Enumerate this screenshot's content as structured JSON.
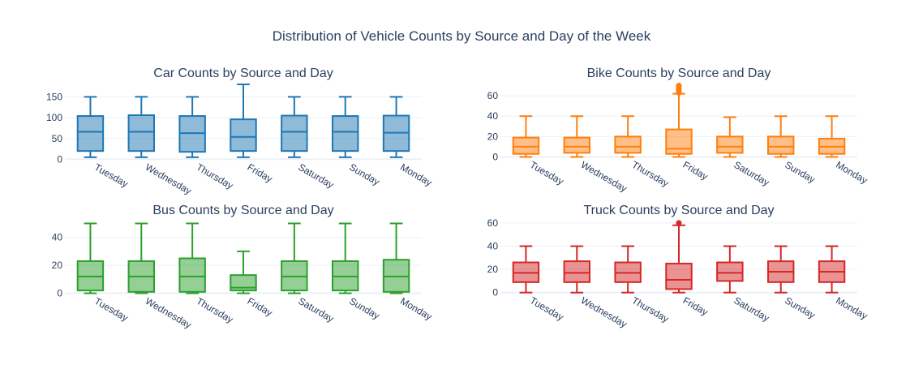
{
  "title": "Distribution of Vehicle Counts by Source and Day of the Week",
  "chart_data": [
    {
      "type": "box",
      "title": "Car Counts by Source and Day",
      "color": "#1f77b4",
      "fill": "rgba(31,119,180,0.5)",
      "ylim": [
        -5,
        182
      ],
      "yticks": [
        0,
        50,
        100,
        150
      ],
      "categories": [
        "Tuesday",
        "Wednesday",
        "Thursday",
        "Friday",
        "Saturday",
        "Sunday",
        "Monday"
      ],
      "boxes": [
        {
          "min": 5,
          "q1": 20,
          "median": 66,
          "q3": 104,
          "max": 150,
          "outliers": []
        },
        {
          "min": 5,
          "q1": 20,
          "median": 66,
          "q3": 106,
          "max": 150,
          "outliers": []
        },
        {
          "min": 5,
          "q1": 18,
          "median": 63,
          "q3": 104,
          "max": 150,
          "outliers": []
        },
        {
          "min": 5,
          "q1": 20,
          "median": 54,
          "q3": 96,
          "max": 180,
          "outliers": []
        },
        {
          "min": 5,
          "q1": 20,
          "median": 66,
          "q3": 105,
          "max": 150,
          "outliers": []
        },
        {
          "min": 5,
          "q1": 20,
          "median": 66,
          "q3": 104,
          "max": 150,
          "outliers": []
        },
        {
          "min": 5,
          "q1": 20,
          "median": 64,
          "q3": 105,
          "max": 150,
          "outliers": []
        }
      ]
    },
    {
      "type": "box",
      "title": "Bike Counts by Source and Day",
      "color": "#ff7f0e",
      "fill": "rgba(255,127,14,0.5)",
      "ylim": [
        -2,
        72
      ],
      "yticks": [
        0,
        20,
        40,
        60
      ],
      "categories": [
        "Tuesday",
        "Wednesday",
        "Thursday",
        "Friday",
        "Saturday",
        "Sunday",
        "Monday"
      ],
      "boxes": [
        {
          "min": 0,
          "q1": 3,
          "median": 10,
          "q3": 19,
          "max": 40,
          "outliers": []
        },
        {
          "min": 0,
          "q1": 4,
          "median": 10,
          "q3": 19,
          "max": 40,
          "outliers": []
        },
        {
          "min": 0,
          "q1": 4,
          "median": 10,
          "q3": 20,
          "max": 40,
          "outliers": []
        },
        {
          "min": 0,
          "q1": 3,
          "median": 8,
          "q3": 27,
          "max": 62,
          "outliers": [
            63,
            64,
            65,
            66,
            67,
            68,
            69,
            70
          ]
        },
        {
          "min": 0,
          "q1": 4,
          "median": 10,
          "q3": 20,
          "max": 39,
          "outliers": []
        },
        {
          "min": 0,
          "q1": 3,
          "median": 10,
          "q3": 20,
          "max": 40,
          "outliers": []
        },
        {
          "min": 0,
          "q1": 3,
          "median": 10,
          "q3": 18,
          "max": 40,
          "outliers": []
        }
      ]
    },
    {
      "type": "box",
      "title": "Bus Counts by Source and Day",
      "color": "#2ca02c",
      "fill": "rgba(44,160,44,0.5)",
      "ylim": [
        -2,
        52
      ],
      "yticks": [
        0,
        20,
        40
      ],
      "categories": [
        "Tuesday",
        "Wednesday",
        "Thursday",
        "Friday",
        "Saturday",
        "Sunday",
        "Monday"
      ],
      "boxes": [
        {
          "min": 0,
          "q1": 2,
          "median": 12,
          "q3": 23,
          "max": 50,
          "outliers": []
        },
        {
          "min": 0,
          "q1": 1,
          "median": 12,
          "q3": 23,
          "max": 50,
          "outliers": []
        },
        {
          "min": 0,
          "q1": 1,
          "median": 12,
          "q3": 25,
          "max": 50,
          "outliers": []
        },
        {
          "min": 0,
          "q1": 2,
          "median": 4,
          "q3": 13,
          "max": 30,
          "outliers": []
        },
        {
          "min": 0,
          "q1": 2,
          "median": 12,
          "q3": 23,
          "max": 50,
          "outliers": []
        },
        {
          "min": 0,
          "q1": 2,
          "median": 12,
          "q3": 23,
          "max": 50,
          "outliers": []
        },
        {
          "min": 0,
          "q1": 1,
          "median": 12,
          "q3": 24,
          "max": 50,
          "outliers": []
        }
      ]
    },
    {
      "type": "box",
      "title": "Truck Counts by Source and Day",
      "color": "#d62728",
      "fill": "rgba(214,39,40,0.5)",
      "ylim": [
        -3,
        62
      ],
      "yticks": [
        0,
        20,
        40,
        60
      ],
      "categories": [
        "Tuesday",
        "Wednesday",
        "Thursday",
        "Friday",
        "Saturday",
        "Sunday",
        "Monday"
      ],
      "boxes": [
        {
          "min": 0,
          "q1": 9,
          "median": 17,
          "q3": 26,
          "max": 40,
          "outliers": []
        },
        {
          "min": 0,
          "q1": 9,
          "median": 17,
          "q3": 27,
          "max": 40,
          "outliers": []
        },
        {
          "min": 0,
          "q1": 9,
          "median": 17,
          "q3": 26,
          "max": 40,
          "outliers": []
        },
        {
          "min": 0,
          "q1": 3,
          "median": 11,
          "q3": 25,
          "max": 58,
          "outliers": [
            60
          ]
        },
        {
          "min": 0,
          "q1": 10,
          "median": 17,
          "q3": 26,
          "max": 40,
          "outliers": []
        },
        {
          "min": 0,
          "q1": 9,
          "median": 18,
          "q3": 27,
          "max": 40,
          "outliers": []
        },
        {
          "min": 0,
          "q1": 9,
          "median": 18,
          "q3": 27,
          "max": 40,
          "outliers": []
        }
      ]
    }
  ]
}
